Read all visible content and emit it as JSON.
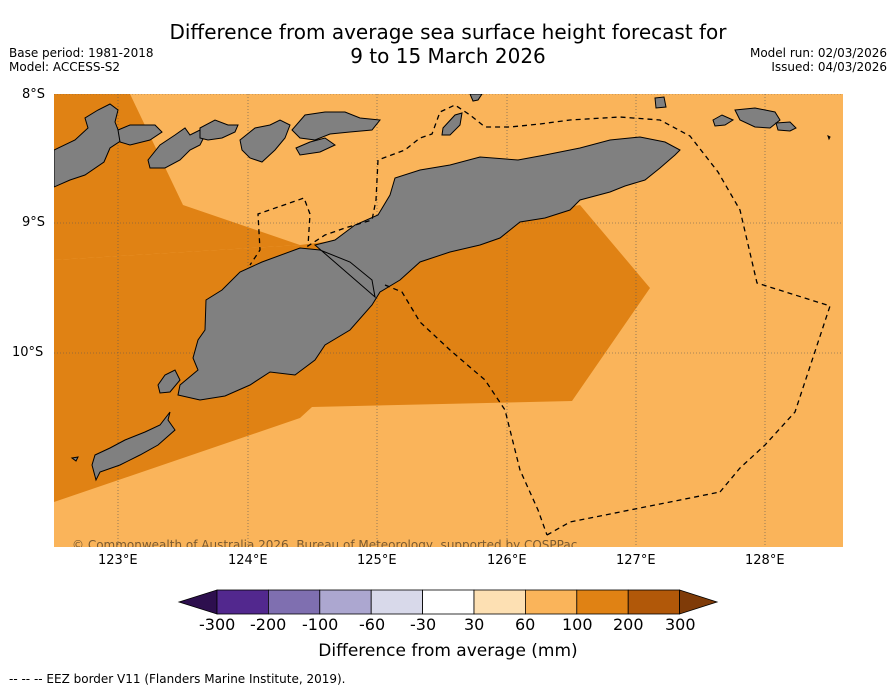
{
  "title_line1": "Difference from average sea surface height forecast for",
  "title_line2": "9 to 15 March 2026",
  "base_period": "Base period: 1981-2018",
  "model": "Model: ACCESS-S2",
  "model_run": "Model run: 02/03/2026",
  "issued": "Issued: 04/03/2026",
  "copyright": "© Commonwealth of Australia 2026, Bureau of Meteorology, supported by COSPPac",
  "lat_labels": [
    "8°S",
    "9°S",
    "10°S"
  ],
  "lon_labels": [
    "123°E",
    "124°E",
    "125°E",
    "126°E",
    "127°E",
    "128°E"
  ],
  "colorbar": {
    "ticks": [
      "-300",
      "-200",
      "-100",
      "-60",
      "-30",
      "30",
      "60",
      "100",
      "200",
      "300"
    ],
    "colors": [
      "#2d0f4e",
      "#52288e",
      "#7f6fb0",
      "#aca7d0",
      "#d8d9ea",
      "#ffffff",
      "#fde0b3",
      "#fab45a",
      "#e08214",
      "#b15809",
      "#7f3b08"
    ],
    "title": "Difference from average (mm)"
  },
  "footer": "--  --  -- EEZ border V11 (Flanders Marine Institute, 2019).",
  "map_colors": {
    "light": "#fab45a",
    "dark": "#e08214",
    "land": "#808080"
  }
}
